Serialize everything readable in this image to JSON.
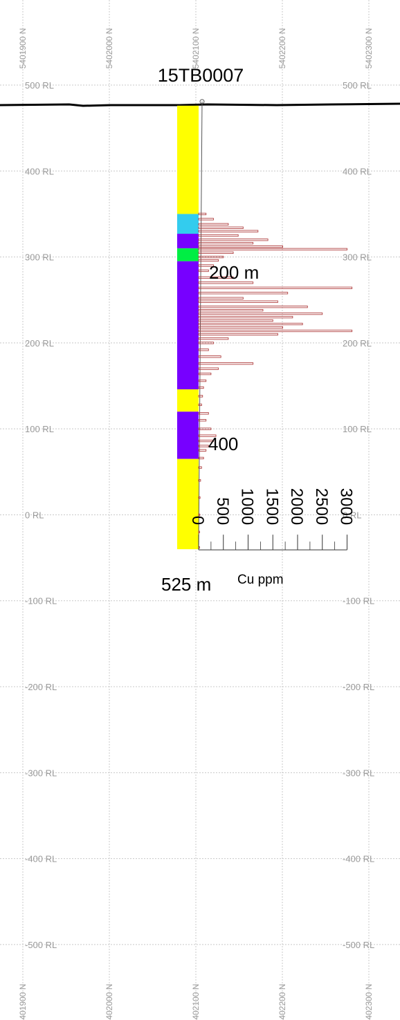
{
  "hole_id": "15TB0007",
  "depth_labels": [
    "200 m",
    "400",
    "525 m"
  ],
  "rl_labels": [
    "500 RL",
    "400 RL",
    "300 RL",
    "200 RL",
    "100 RL",
    "0 RL",
    "-100 RL",
    "-200 RL",
    "-300 RL",
    "-400 RL",
    "-500 RL"
  ],
  "rl_values": [
    500,
    400,
    300,
    200,
    100,
    0,
    -100,
    -200,
    -300,
    -400,
    -500
  ],
  "northing_labels": [
    "5401900 N",
    "5402000 N",
    "5402100 N",
    "5402200 N",
    "5402300 N"
  ],
  "northing_values": [
    5401900,
    5402000,
    5402100,
    5402200,
    5402300
  ],
  "cu_axis": {
    "title": "Cu ppm",
    "tick_labels": [
      "0",
      "500",
      "1000",
      "1500",
      "2000",
      "2500",
      "3000"
    ],
    "tick_values": [
      0,
      500,
      1000,
      1500,
      2000,
      2500,
      3000
    ]
  },
  "collar_rl": 476,
  "hole_bottom_rl": -40,
  "lithology": [
    {
      "from_rl": 476,
      "to_rl": 350,
      "color": "#ffff00"
    },
    {
      "from_rl": 350,
      "to_rl": 327,
      "color": "#33ccee"
    },
    {
      "from_rl": 327,
      "to_rl": 310,
      "color": "#7700ff"
    },
    {
      "from_rl": 310,
      "to_rl": 295,
      "color": "#00ee44"
    },
    {
      "from_rl": 295,
      "to_rl": 146,
      "color": "#7700ff"
    },
    {
      "from_rl": 146,
      "to_rl": 120,
      "color": "#ffff00"
    },
    {
      "from_rl": 120,
      "to_rl": 65,
      "color": "#7700ff"
    },
    {
      "from_rl": 65,
      "to_rl": -40,
      "color": "#ffff00"
    }
  ],
  "cu_ppm": [
    {
      "rl": 350,
      "ppm": 150
    },
    {
      "rl": 344,
      "ppm": 300
    },
    {
      "rl": 338,
      "ppm": 600
    },
    {
      "rl": 334,
      "ppm": 900
    },
    {
      "rl": 330,
      "ppm": 1200
    },
    {
      "rl": 325,
      "ppm": 800
    },
    {
      "rl": 320,
      "ppm": 1400
    },
    {
      "rl": 316,
      "ppm": 1100
    },
    {
      "rl": 312,
      "ppm": 1700
    },
    {
      "rl": 309,
      "ppm": 3000
    },
    {
      "rl": 305,
      "ppm": 700
    },
    {
      "rl": 300,
      "ppm": 500
    },
    {
      "rl": 296,
      "ppm": 400
    },
    {
      "rl": 290,
      "ppm": 300
    },
    {
      "rl": 284,
      "ppm": 200
    },
    {
      "rl": 276,
      "ppm": 700
    },
    {
      "rl": 270,
      "ppm": 1100
    },
    {
      "rl": 264,
      "ppm": 3100
    },
    {
      "rl": 258,
      "ppm": 1800
    },
    {
      "rl": 252,
      "ppm": 900
    },
    {
      "rl": 248,
      "ppm": 1600
    },
    {
      "rl": 242,
      "ppm": 2200
    },
    {
      "rl": 238,
      "ppm": 1300
    },
    {
      "rl": 234,
      "ppm": 2500
    },
    {
      "rl": 230,
      "ppm": 1900
    },
    {
      "rl": 226,
      "ppm": 1500
    },
    {
      "rl": 222,
      "ppm": 2100
    },
    {
      "rl": 218,
      "ppm": 1700
    },
    {
      "rl": 214,
      "ppm": 3100
    },
    {
      "rl": 210,
      "ppm": 1600
    },
    {
      "rl": 205,
      "ppm": 600
    },
    {
      "rl": 200,
      "ppm": 300
    },
    {
      "rl": 192,
      "ppm": 200
    },
    {
      "rl": 184,
      "ppm": 450
    },
    {
      "rl": 176,
      "ppm": 1100
    },
    {
      "rl": 170,
      "ppm": 400
    },
    {
      "rl": 164,
      "ppm": 250
    },
    {
      "rl": 156,
      "ppm": 150
    },
    {
      "rl": 148,
      "ppm": 100
    },
    {
      "rl": 138,
      "ppm": 80
    },
    {
      "rl": 128,
      "ppm": 60
    },
    {
      "rl": 118,
      "ppm": 200
    },
    {
      "rl": 110,
      "ppm": 150
    },
    {
      "rl": 100,
      "ppm": 250
    },
    {
      "rl": 92,
      "ppm": 350
    },
    {
      "rl": 86,
      "ppm": 300
    },
    {
      "rl": 80,
      "ppm": 200
    },
    {
      "rl": 75,
      "ppm": 150
    },
    {
      "rl": 66,
      "ppm": 100
    },
    {
      "rl": 55,
      "ppm": 60
    },
    {
      "rl": 40,
      "ppm": 40
    },
    {
      "rl": 20,
      "ppm": 30
    },
    {
      "rl": 0,
      "ppm": 25
    },
    {
      "rl": -20,
      "ppm": 20
    },
    {
      "rl": -38,
      "ppm": 20
    }
  ],
  "colors": {
    "grid": "#c8c8c8",
    "label": "#9a9a9a",
    "cu_bar": "#b04040",
    "topography": "#000000"
  }
}
